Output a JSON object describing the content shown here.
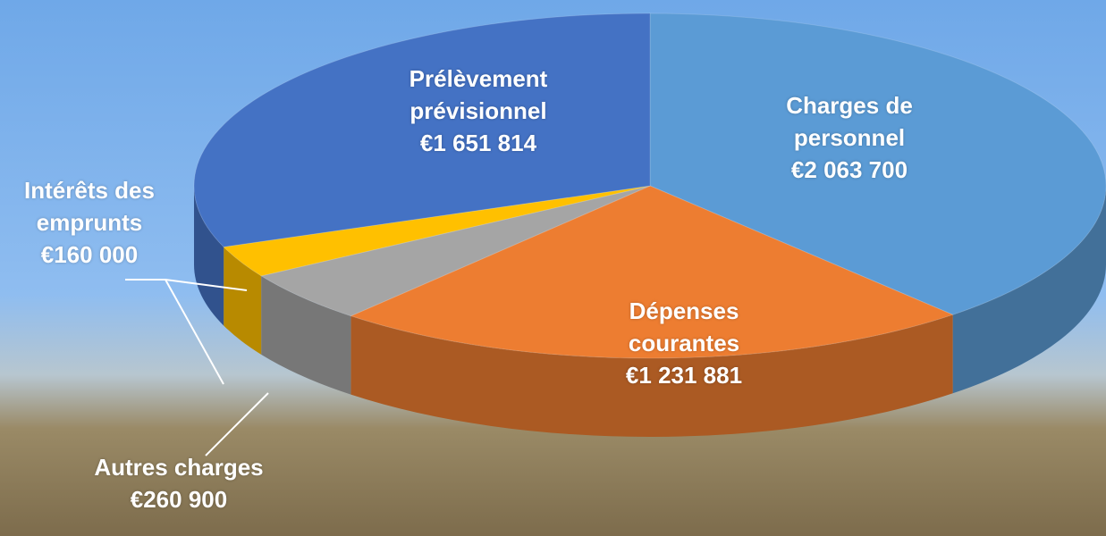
{
  "chart_data": {
    "type": "pie",
    "categories": [
      "Charges de personnel",
      "Dépenses courantes",
      "Autres charges",
      "Intérêts des emprunts",
      "Prélèvement prévisionnel"
    ],
    "values": [
      2063700,
      1231881,
      260900,
      160000,
      1651814
    ],
    "value_labels": [
      "€2 063 700",
      "€1 231 881",
      "€260 900",
      "€160 000",
      "€1 651 814"
    ],
    "colors": [
      "#5b9bd5",
      "#ed7d31",
      "#a5a5a5",
      "#ffc000",
      "#4472c4"
    ]
  }
}
